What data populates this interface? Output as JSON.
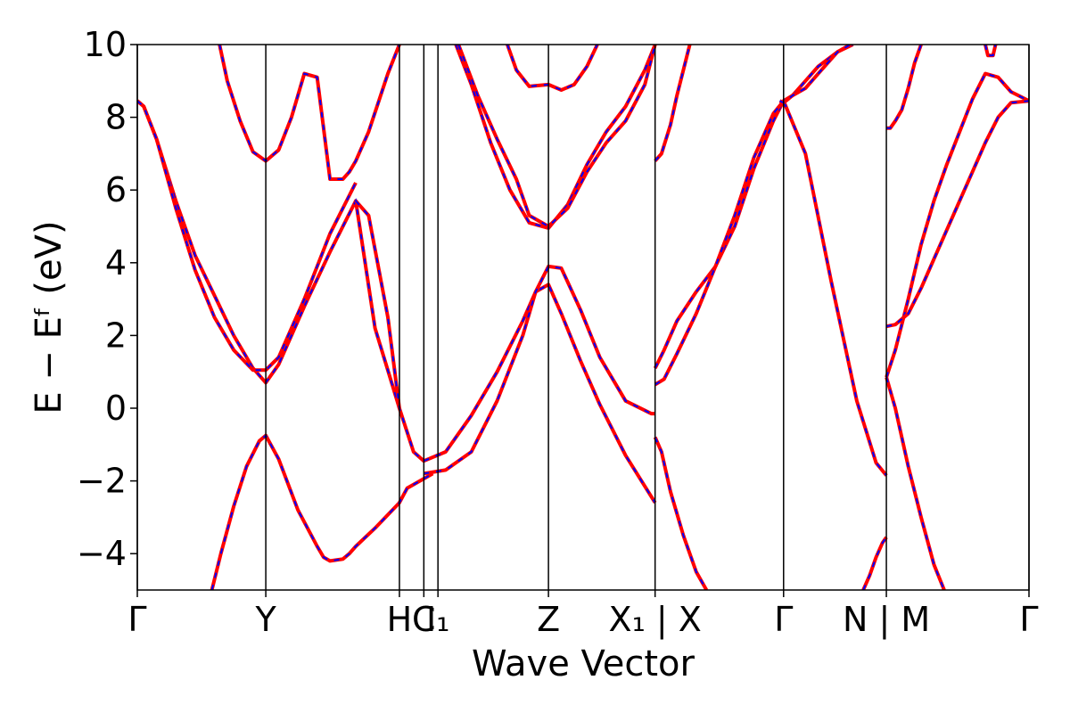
{
  "chart_data": {
    "type": "line",
    "title": "",
    "xlabel": "Wave Vector",
    "ylabel": "E − Eᶠ (eV)",
    "ylim": [
      -5,
      10
    ],
    "xlim": [
      0,
      6.94
    ],
    "grid": false,
    "y_ticks": [
      -4,
      -2,
      0,
      2,
      4,
      6,
      8,
      10
    ],
    "y_tick_labels": [
      "−4",
      "−2",
      "0",
      "2",
      "4",
      "6",
      "8",
      "10"
    ],
    "kpoint_boundaries": [
      0,
      1.0,
      2.04,
      2.23,
      2.34,
      3.2,
      4.03,
      5.03,
      5.83,
      6.94
    ],
    "x_tick_labels": [
      {
        "x": 0,
        "label": "Γ"
      },
      {
        "x": 1.0,
        "label": "Y"
      },
      {
        "x": 2.04,
        "label": "H"
      },
      {
        "x": 2.23,
        "label": "C"
      },
      {
        "x": 2.34,
        "label": "I₁"
      },
      {
        "x": 3.2,
        "label": "Z"
      },
      {
        "x": 4.03,
        "label": "X₁ | X"
      },
      {
        "x": 5.03,
        "label": "Γ"
      },
      {
        "x": 5.83,
        "label": "N | M"
      },
      {
        "x": 6.94,
        "label": "Γ"
      }
    ],
    "line_styles": {
      "overlay": {
        "color": "#ff0000",
        "dash": "solid"
      },
      "underlay": {
        "color": "#0000ff",
        "dash": "dashed"
      }
    },
    "series": [
      {
        "x": [
          0,
          0.05,
          0.15,
          0.3,
          0.45,
          0.6,
          0.75,
          0.9,
          1.0,
          1.1,
          1.3,
          1.5,
          1.7,
          1.85,
          2.04
        ],
        "y": [
          8.45,
          8.3,
          7.4,
          5.7,
          4.2,
          3.1,
          2.0,
          1.1,
          0.7,
          1.2,
          2.8,
          4.3,
          5.7,
          2.2,
          0.0
        ]
      },
      {
        "x": [
          0,
          0.05,
          0.15,
          0.3,
          0.45,
          0.6,
          0.75,
          0.9,
          1.0,
          1.1,
          1.3,
          1.5,
          1.7
        ],
        "y": [
          8.45,
          8.3,
          7.4,
          5.5,
          3.8,
          2.5,
          1.6,
          1.05,
          1.05,
          1.4,
          3.0,
          4.8,
          6.2
        ]
      },
      {
        "x": [
          0.58,
          0.65,
          0.75,
          0.85,
          0.95,
          1.0,
          1.1,
          1.25,
          1.4,
          1.45,
          1.5,
          1.6,
          1.65,
          1.7,
          1.85,
          2.04,
          2.1,
          2.3
        ],
        "y": [
          -5.0,
          -4.0,
          -2.7,
          -1.6,
          -0.9,
          -0.75,
          -1.4,
          -2.8,
          -3.8,
          -4.1,
          -4.2,
          -4.15,
          -4.0,
          -3.8,
          -3.3,
          -2.6,
          -2.2,
          -1.8
        ]
      },
      {
        "x": [
          0.64,
          0.7,
          0.8,
          0.9,
          1.0,
          1.1,
          1.2,
          1.3,
          1.4,
          1.5,
          1.6,
          1.65,
          1.7,
          1.8,
          1.95,
          2.04
        ],
        "y": [
          10.0,
          9.0,
          7.9,
          7.05,
          6.8,
          7.1,
          8.0,
          9.2,
          9.1,
          6.3,
          6.3,
          6.5,
          6.8,
          7.6,
          9.2,
          10.0
        ]
      },
      {
        "x": [
          1.7,
          1.8,
          1.95,
          2.04,
          2.15,
          2.23,
          2.4,
          2.6,
          2.8,
          3.0,
          3.1,
          3.2,
          3.3,
          3.45,
          3.6,
          3.8,
          4.03
        ],
        "y": [
          5.7,
          5.3,
          2.5,
          0.0,
          -1.2,
          -1.45,
          -1.2,
          -0.2,
          1.0,
          2.4,
          3.2,
          3.4,
          2.6,
          1.3,
          0.1,
          -1.3,
          -2.6
        ]
      },
      {
        "x": [
          2.23,
          2.4,
          2.6,
          2.8,
          3.0,
          3.1,
          3.2,
          3.3,
          3.45,
          3.6,
          3.8,
          4.0,
          4.03
        ],
        "y": [
          -1.8,
          -1.7,
          -1.2,
          0.2,
          2.0,
          3.2,
          3.9,
          3.85,
          2.7,
          1.4,
          0.2,
          -0.15,
          -0.15
        ]
      },
      {
        "x": [
          2.48,
          2.6,
          2.75,
          2.9,
          3.05,
          3.2,
          3.35,
          3.5,
          3.65,
          3.8,
          3.95,
          4.03
        ],
        "y": [
          10.0,
          8.9,
          7.3,
          6.0,
          5.1,
          4.95,
          5.6,
          6.7,
          7.6,
          8.3,
          9.3,
          10.0
        ]
      },
      {
        "x": [
          2.5,
          2.65,
          2.8,
          2.95,
          3.05,
          3.2,
          3.35,
          3.5,
          3.65,
          3.8,
          3.95,
          4.03
        ],
        "y": [
          10.0,
          8.6,
          7.4,
          6.3,
          5.3,
          5.0,
          5.5,
          6.5,
          7.3,
          7.9,
          8.9,
          10.0
        ]
      },
      {
        "x": [
          2.88,
          2.95,
          3.05,
          3.2,
          3.3,
          3.4,
          3.5,
          3.58
        ],
        "y": [
          10.0,
          9.3,
          8.85,
          8.9,
          8.75,
          8.9,
          9.4,
          10.0
        ]
      },
      {
        "x": [
          4.03,
          4.08,
          4.15,
          4.2,
          4.25,
          4.3
        ],
        "y": [
          6.8,
          7.0,
          7.8,
          8.6,
          9.3,
          10.0
        ]
      },
      {
        "x": [
          4.03,
          4.1,
          4.2,
          4.35,
          4.5,
          4.65,
          4.8,
          4.95,
          5.03,
          5.2,
          5.4,
          5.6,
          5.75,
          5.83
        ],
        "y": [
          1.1,
          1.6,
          2.4,
          3.2,
          3.9,
          5.0,
          6.6,
          7.9,
          8.45,
          7.0,
          3.5,
          0.2,
          -1.5,
          -1.85
        ]
      },
      {
        "x": [
          4.03,
          4.1,
          4.2,
          4.35,
          4.5,
          4.65,
          4.8,
          4.95,
          5.03,
          5.1,
          5.2,
          5.3,
          5.45,
          5.57
        ],
        "y": [
          0.65,
          0.8,
          1.5,
          2.6,
          3.9,
          5.3,
          6.9,
          8.1,
          8.45,
          8.6,
          9.0,
          9.4,
          9.8,
          10.0
        ]
      },
      {
        "x": [
          4.03,
          4.08,
          4.15,
          4.25,
          4.35,
          4.43
        ],
        "y": [
          -0.8,
          -1.2,
          -2.3,
          -3.5,
          -4.5,
          -5.0
        ]
      },
      {
        "x": [
          5.0,
          5.03,
          5.1,
          5.2,
          5.3,
          5.45,
          5.55,
          5.65,
          5.75,
          5.83
        ],
        "y": [
          8.45,
          8.4,
          8.6,
          8.8,
          9.2,
          9.8,
          10.0,
          10.3,
          10.6,
          10.9
        ]
      },
      {
        "x": [
          5.65,
          5.7,
          5.75,
          5.8,
          5.83
        ],
        "y": [
          -5.0,
          -4.6,
          -4.1,
          -3.7,
          -3.55
        ]
      },
      {
        "x": [
          5.83,
          5.9,
          6.0,
          6.1,
          6.2,
          6.3,
          6.4,
          6.5,
          6.6,
          6.7,
          6.8,
          6.94
        ],
        "y": [
          0.85,
          1.6,
          3.0,
          4.5,
          5.7,
          6.7,
          7.6,
          8.5,
          9.2,
          9.1,
          8.7,
          8.45
        ]
      },
      {
        "x": [
          5.83,
          5.9,
          6.0,
          6.1,
          6.2,
          6.3,
          6.4,
          6.5,
          6.6,
          6.7,
          6.8,
          6.94
        ],
        "y": [
          2.25,
          2.3,
          2.6,
          3.3,
          4.1,
          4.9,
          5.7,
          6.5,
          7.3,
          8.0,
          8.4,
          8.45
        ]
      },
      {
        "x": [
          5.83,
          5.9,
          6.0,
          6.1,
          6.2,
          6.28
        ],
        "y": [
          0.85,
          0.0,
          -1.6,
          -3.0,
          -4.3,
          -5.0
        ]
      },
      {
        "x": [
          5.83,
          5.86,
          5.9,
          5.95,
          6.0,
          6.05,
          6.1
        ],
        "y": [
          7.7,
          7.7,
          7.9,
          8.2,
          8.8,
          9.5,
          10.0
        ]
      },
      {
        "x": [
          6.6,
          6.62,
          6.66,
          6.68
        ],
        "y": [
          10.0,
          9.7,
          9.7,
          10.0
        ]
      }
    ]
  }
}
